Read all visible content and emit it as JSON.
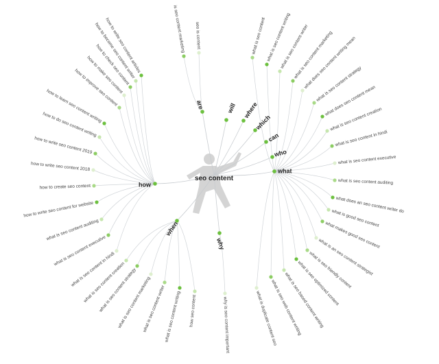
{
  "center": "seo content",
  "branches": [
    {
      "label": "how",
      "leaves": [
        "how to write seo content articles",
        "how to become seo content writer",
        "how to check seo content",
        "how to make seo content",
        "how to improve seo content",
        "how to learn seo content writing",
        "how to do seo content writing",
        "how to write seo content 2019",
        "how to write seo content 2018",
        "how to create seo content",
        "how to write seo content for website",
        "what is seo content auditing",
        "what is seo content executive",
        "what is seo content in hindi"
      ]
    },
    {
      "label": "are",
      "leaves": [
        "is seo content marketing",
        "seo is content"
      ]
    },
    {
      "label": "will",
      "leaves": []
    },
    {
      "label": "where",
      "leaves": []
    },
    {
      "label": "which",
      "leaves": []
    },
    {
      "label": "can",
      "leaves": []
    },
    {
      "label": "who",
      "leaves": []
    },
    {
      "label": "what",
      "leaves": [
        "what is seo content",
        "what is seo content writing",
        "what is seo content writer",
        "what is seo content marketing",
        "what does seo content writing mean",
        "what is seo content strategy",
        "what does seo content mean",
        "what is seo content creation",
        "what is seo content in hindi",
        "what is seo content executive",
        "what is seo content auditing",
        "what does an seo content writer do",
        "what is good seo content",
        "what makes good seo content",
        "what is an seo content strategist",
        "what is seo friendly content",
        "what is seo optimized content",
        "what is seo based content writing",
        "what is seo web content writing",
        "what is duplicate content seo"
      ]
    },
    {
      "label": "when",
      "leaves": [
        "what is seo content creation",
        "what is seo content strategy",
        "what is seo content marketing",
        "what is seo content writer",
        "what is seo content writing",
        "how seo content"
      ]
    },
    {
      "label": "why",
      "leaves": [
        "why is seo content important"
      ]
    }
  ]
}
